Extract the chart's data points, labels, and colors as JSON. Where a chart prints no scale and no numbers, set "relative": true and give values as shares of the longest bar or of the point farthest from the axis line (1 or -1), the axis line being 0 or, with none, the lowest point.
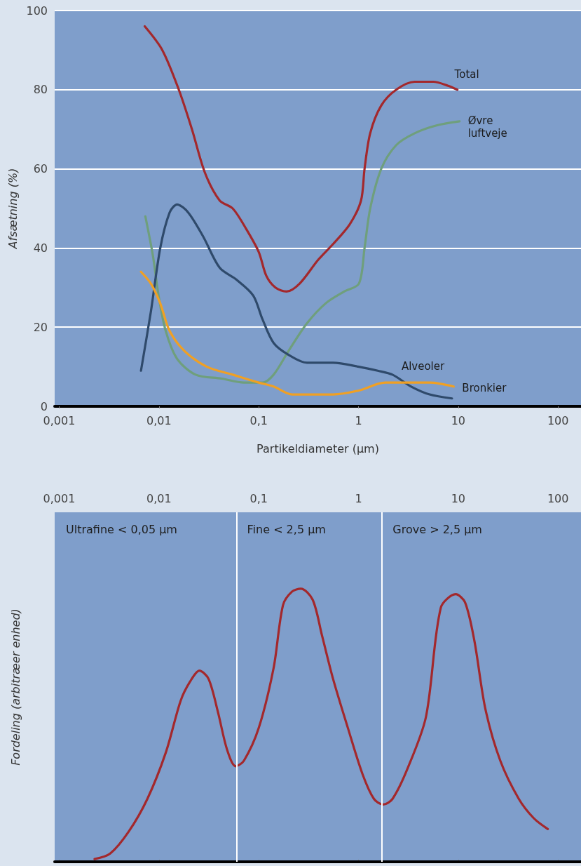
{
  "chart_data": [
    {
      "type": "line",
      "xlabel": "Partikeldiameter (µm)",
      "ylabel": "Afsætning (%)",
      "log": "x",
      "grid": "y",
      "legend": false,
      "marker": "none",
      "line_style": "solid",
      "xlim": [
        0.0009,
        170
      ],
      "xticks": [
        {
          "value": 0.001,
          "label": "0,001"
        },
        {
          "value": 0.01,
          "label": "0,01"
        },
        {
          "value": 0.1,
          "label": "0,1"
        },
        1,
        10,
        100
      ],
      "ylim": [
        0,
        100
      ],
      "yticks": [
        0,
        20,
        40,
        60,
        80,
        100
      ],
      "series": [
        {
          "name": "Total",
          "color": "#a3282c",
          "x": [
            0.0072,
            0.0108,
            0.0158,
            0.0214,
            0.0289,
            0.0406,
            0.0548,
            0.0741,
            0.1,
            0.119,
            0.147,
            0.19,
            0.257,
            0.394,
            0.556,
            0.817,
            1.06,
            1.15,
            1.31,
            1.69,
            2.39,
            3.66,
            5.62,
            7.9,
            9.8
          ],
          "values": [
            96,
            90,
            80,
            70,
            59,
            52,
            50,
            45,
            39,
            33,
            30,
            29,
            31,
            37,
            41,
            46,
            52,
            60,
            69,
            76,
            80,
            82,
            82,
            81,
            80
          ]
        },
        {
          "name": "Øvre luftveje",
          "color": "#6f9f7c",
          "x": [
            0.0073,
            0.0087,
            0.0099,
            0.0117,
            0.0152,
            0.0233,
            0.0425,
            0.071,
            0.109,
            0.141,
            0.199,
            0.305,
            0.468,
            0.719,
            1.01,
            1.15,
            1.31,
            1.69,
            2.39,
            3.66,
            6.14,
            10.3
          ],
          "values": [
            48,
            38,
            28,
            19,
            12,
            8,
            7,
            6,
            6,
            8,
            14,
            21,
            26,
            29,
            31,
            40,
            50,
            60,
            66,
            69,
            71,
            72
          ]
        },
        {
          "name": "Alveoler",
          "color": "#2f4a6b",
          "x": [
            0.0066,
            0.0083,
            0.0103,
            0.0128,
            0.0152,
            0.0196,
            0.0276,
            0.0406,
            0.0598,
            0.088,
            0.109,
            0.141,
            0.199,
            0.305,
            0.556,
            1.01,
            1.56,
            2.19,
            3.37,
            5.16,
            8.65
          ],
          "values": [
            9,
            24,
            40,
            49,
            51,
            49,
            43,
            35,
            32,
            28,
            22,
            16,
            13,
            11,
            11,
            10,
            9,
            8,
            5,
            3,
            2
          ]
        },
        {
          "name": "Bronkier",
          "color": "#f0a024",
          "x": [
            0.0066,
            0.0083,
            0.0103,
            0.0128,
            0.018,
            0.0302,
            0.0548,
            0.1,
            0.141,
            0.216,
            0.305,
            0.556,
            1.01,
            1.85,
            3.09,
            5.16,
            9.0
          ],
          "values": [
            34,
            31,
            26,
            19,
            14,
            10,
            8,
            6,
            5,
            3,
            3,
            3,
            4,
            6,
            6,
            6,
            5
          ]
        }
      ]
    },
    {
      "type": "line",
      "ylabel": "Fordeling (arbitræer enhed)",
      "relative": true,
      "log": "x",
      "grid": false,
      "legend": false,
      "marker": "none",
      "line_style": "solid",
      "tick_labels": "x",
      "xlim": [
        0.0009,
        170
      ],
      "xticks": [
        {
          "value": 0.001,
          "label": "0,001"
        },
        {
          "value": 0.01,
          "label": "0,01"
        },
        {
          "value": 0.1,
          "label": "0,1"
        },
        1,
        10,
        100
      ],
      "ref_lines": [
        {
          "axis": "x",
          "value": 0.059,
          "color": "#ffffff"
        },
        {
          "axis": "x",
          "value": 1.7,
          "color": "#ffffff"
        }
      ],
      "annotations": [
        "Ultrafine < 0,05 µm",
        "Fine < 2,5 µm",
        "Grove > 2,5 µm"
      ],
      "series": [
        {
          "color": "#a3282c",
          "x": [
            0.00226,
            0.00324,
            0.00496,
            0.00764,
            0.0117,
            0.0165,
            0.0205,
            0.0254,
            0.0314,
            0.0389,
            0.0482,
            0.0587,
            0.071,
            0.1,
            0.141,
            0.175,
            0.216,
            0.264,
            0.347,
            0.43,
            0.556,
            0.783,
            1.1,
            1.43,
            1.77,
            2.19,
            3.09,
            4.74,
            6.68,
            9.42,
            11.7,
            14.5,
            18.7,
            26.4,
            40.5,
            57,
            79
          ],
          "values": [
            0.01,
            0.03,
            0.11,
            0.23,
            0.4,
            0.59,
            0.66,
            0.7,
            0.67,
            0.55,
            0.41,
            0.35,
            0.37,
            0.49,
            0.71,
            0.94,
            0.99,
            1,
            0.96,
            0.83,
            0.67,
            0.49,
            0.32,
            0.23,
            0.21,
            0.23,
            0.34,
            0.53,
            0.93,
            0.98,
            0.95,
            0.81,
            0.56,
            0.37,
            0.23,
            0.16,
            0.12
          ]
        }
      ]
    }
  ]
}
